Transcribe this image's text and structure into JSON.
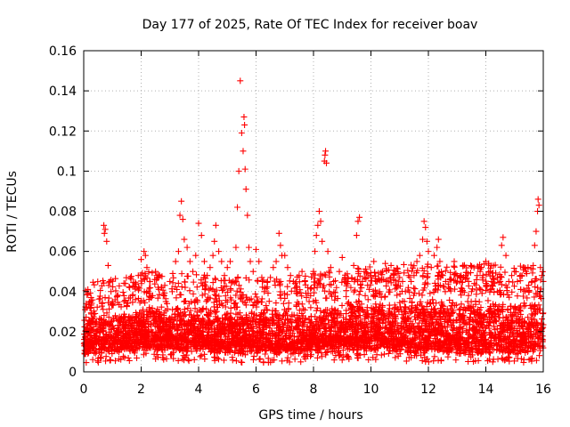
{
  "chart_data": {
    "type": "scatter",
    "title": "Day 177 of 2025, Rate Of TEC Index for receiver boav",
    "xlabel": "GPS time / hours",
    "ylabel": "ROTI / TECUs",
    "xlim": [
      0,
      16
    ],
    "ylim": [
      0,
      0.16
    ],
    "xticks": [
      0,
      2,
      4,
      6,
      8,
      10,
      12,
      14,
      16
    ],
    "xtick_labels": [
      "0",
      "2",
      "4",
      "6",
      "8",
      "10",
      "12",
      "14",
      "16"
    ],
    "yticks": [
      0,
      0.02,
      0.04,
      0.06,
      0.08,
      0.1,
      0.12,
      0.14,
      0.16
    ],
    "ytick_labels": [
      "0",
      "0.02",
      "0.04",
      "0.06",
      "0.08",
      "0.1",
      "0.12",
      "0.14",
      "0.16"
    ],
    "grid": true,
    "marker": "plus",
    "color": "#ff0000",
    "series": [
      {
        "name": "ROTI",
        "points": [
          [
            0.05,
            0.031
          ],
          [
            0.1,
            0.022
          ],
          [
            0.2,
            0.015
          ],
          [
            0.3,
            0.012
          ],
          [
            0.4,
            0.018
          ],
          [
            0.5,
            0.021
          ],
          [
            0.6,
            0.026
          ],
          [
            0.7,
            0.073
          ],
          [
            0.72,
            0.069
          ],
          [
            0.75,
            0.071
          ],
          [
            0.8,
            0.065
          ],
          [
            0.85,
            0.053
          ],
          [
            0.9,
            0.045
          ],
          [
            0.95,
            0.04
          ],
          [
            1.0,
            0.035
          ],
          [
            1.1,
            0.028
          ],
          [
            1.2,
            0.02
          ],
          [
            1.3,
            0.016
          ],
          [
            1.4,
            0.022
          ],
          [
            1.5,
            0.033
          ],
          [
            1.6,
            0.042
          ],
          [
            1.7,
            0.038
          ],
          [
            1.8,
            0.036
          ],
          [
            1.9,
            0.048
          ],
          [
            2.0,
            0.056
          ],
          [
            2.1,
            0.06
          ],
          [
            2.15,
            0.058
          ],
          [
            2.2,
            0.052
          ],
          [
            2.3,
            0.045
          ],
          [
            2.4,
            0.038
          ],
          [
            2.5,
            0.05
          ],
          [
            2.6,
            0.047
          ],
          [
            2.7,
            0.042
          ],
          [
            2.8,
            0.038
          ],
          [
            2.9,
            0.034
          ],
          [
            3.0,
            0.045
          ],
          [
            3.1,
            0.049
          ],
          [
            3.2,
            0.055
          ],
          [
            3.3,
            0.06
          ],
          [
            3.35,
            0.078
          ],
          [
            3.4,
            0.085
          ],
          [
            3.45,
            0.076
          ],
          [
            3.5,
            0.066
          ],
          [
            3.6,
            0.062
          ],
          [
            3.7,
            0.055
          ],
          [
            3.8,
            0.05
          ],
          [
            3.9,
            0.058
          ],
          [
            4.0,
            0.074
          ],
          [
            4.1,
            0.068
          ],
          [
            4.2,
            0.055
          ],
          [
            4.3,
            0.048
          ],
          [
            4.4,
            0.052
          ],
          [
            4.5,
            0.058
          ],
          [
            4.55,
            0.065
          ],
          [
            4.6,
            0.073
          ],
          [
            4.7,
            0.06
          ],
          [
            4.8,
            0.055
          ],
          [
            4.9,
            0.048
          ],
          [
            5.0,
            0.052
          ],
          [
            5.1,
            0.055
          ],
          [
            5.2,
            0.045
          ],
          [
            5.3,
            0.062
          ],
          [
            5.35,
            0.082
          ],
          [
            5.4,
            0.1
          ],
          [
            5.45,
            0.145
          ],
          [
            5.5,
            0.119
          ],
          [
            5.55,
            0.11
          ],
          [
            5.58,
            0.127
          ],
          [
            5.6,
            0.123
          ],
          [
            5.62,
            0.101
          ],
          [
            5.65,
            0.091
          ],
          [
            5.7,
            0.078
          ],
          [
            5.75,
            0.062
          ],
          [
            5.8,
            0.055
          ],
          [
            5.9,
            0.05
          ],
          [
            6.0,
            0.061
          ],
          [
            6.1,
            0.055
          ],
          [
            6.2,
            0.047
          ],
          [
            6.3,
            0.042
          ],
          [
            6.4,
            0.045
          ],
          [
            6.5,
            0.047
          ],
          [
            6.6,
            0.052
          ],
          [
            6.7,
            0.055
          ],
          [
            6.8,
            0.069
          ],
          [
            6.85,
            0.063
          ],
          [
            6.9,
            0.058
          ],
          [
            7.0,
            0.058
          ],
          [
            7.1,
            0.052
          ],
          [
            7.2,
            0.048
          ],
          [
            7.3,
            0.045
          ],
          [
            7.4,
            0.042
          ],
          [
            7.5,
            0.048
          ],
          [
            7.6,
            0.05
          ],
          [
            7.7,
            0.045
          ],
          [
            7.8,
            0.042
          ],
          [
            7.9,
            0.038
          ],
          [
            8.0,
            0.05
          ],
          [
            8.05,
            0.06
          ],
          [
            8.1,
            0.068
          ],
          [
            8.15,
            0.073
          ],
          [
            8.2,
            0.08
          ],
          [
            8.25,
            0.075
          ],
          [
            8.3,
            0.065
          ],
          [
            8.38,
            0.105
          ],
          [
            8.4,
            0.108
          ],
          [
            8.42,
            0.11
          ],
          [
            8.45,
            0.104
          ],
          [
            8.5,
            0.06
          ],
          [
            8.6,
            0.052
          ],
          [
            8.7,
            0.045
          ],
          [
            8.8,
            0.042
          ],
          [
            8.9,
            0.05
          ],
          [
            9.0,
            0.057
          ],
          [
            9.1,
            0.047
          ],
          [
            9.2,
            0.045
          ],
          [
            9.3,
            0.042
          ],
          [
            9.4,
            0.053
          ],
          [
            9.5,
            0.068
          ],
          [
            9.55,
            0.075
          ],
          [
            9.6,
            0.077
          ],
          [
            9.7,
            0.045
          ],
          [
            9.8,
            0.038
          ],
          [
            9.9,
            0.036
          ],
          [
            10.0,
            0.048
          ],
          [
            10.1,
            0.055
          ],
          [
            10.2,
            0.045
          ],
          [
            10.3,
            0.04
          ],
          [
            10.4,
            0.05
          ],
          [
            10.5,
            0.054
          ],
          [
            10.6,
            0.045
          ],
          [
            10.7,
            0.053
          ],
          [
            10.8,
            0.048
          ],
          [
            10.9,
            0.042
          ],
          [
            11.0,
            0.047
          ],
          [
            11.1,
            0.045
          ],
          [
            11.2,
            0.04
          ],
          [
            11.3,
            0.042
          ],
          [
            11.4,
            0.045
          ],
          [
            11.5,
            0.048
          ],
          [
            11.6,
            0.055
          ],
          [
            11.7,
            0.058
          ],
          [
            11.8,
            0.066
          ],
          [
            11.85,
            0.075
          ],
          [
            11.9,
            0.072
          ],
          [
            11.95,
            0.065
          ],
          [
            12.0,
            0.06
          ],
          [
            12.1,
            0.052
          ],
          [
            12.2,
            0.058
          ],
          [
            12.3,
            0.062
          ],
          [
            12.35,
            0.066
          ],
          [
            12.4,
            0.055
          ],
          [
            12.5,
            0.048
          ],
          [
            12.6,
            0.045
          ],
          [
            12.7,
            0.042
          ],
          [
            12.8,
            0.046
          ],
          [
            12.9,
            0.055
          ],
          [
            13.0,
            0.048
          ],
          [
            13.1,
            0.045
          ],
          [
            13.2,
            0.053
          ],
          [
            13.3,
            0.048
          ],
          [
            13.4,
            0.045
          ],
          [
            13.5,
            0.04
          ],
          [
            13.6,
            0.044
          ],
          [
            13.7,
            0.048
          ],
          [
            13.8,
            0.05
          ],
          [
            13.9,
            0.048
          ],
          [
            14.0,
            0.055
          ],
          [
            14.1,
            0.054
          ],
          [
            14.15,
            0.05
          ],
          [
            14.2,
            0.045
          ],
          [
            14.3,
            0.044
          ],
          [
            14.4,
            0.04
          ],
          [
            14.5,
            0.045
          ],
          [
            14.55,
            0.063
          ],
          [
            14.6,
            0.067
          ],
          [
            14.7,
            0.058
          ],
          [
            14.8,
            0.045
          ],
          [
            14.9,
            0.048
          ],
          [
            15.0,
            0.05
          ],
          [
            15.1,
            0.045
          ],
          [
            15.2,
            0.048
          ],
          [
            15.3,
            0.052
          ],
          [
            15.4,
            0.05
          ],
          [
            15.5,
            0.04
          ],
          [
            15.6,
            0.045
          ],
          [
            15.65,
            0.053
          ],
          [
            15.7,
            0.063
          ],
          [
            15.75,
            0.07
          ],
          [
            15.8,
            0.08
          ],
          [
            15.82,
            0.086
          ],
          [
            15.85,
            0.083
          ],
          [
            15.9,
            0.052
          ],
          [
            15.95,
            0.048
          ],
          [
            16.0,
            0.045
          ]
        ],
        "band_floor": [
          0.008,
          0.01,
          0.009,
          0.008,
          0.01,
          0.009,
          0.008,
          0.009
        ],
        "band_ceiling": [
          0.028,
          0.034,
          0.032,
          0.03,
          0.036,
          0.038,
          0.038,
          0.036
        ]
      }
    ]
  }
}
